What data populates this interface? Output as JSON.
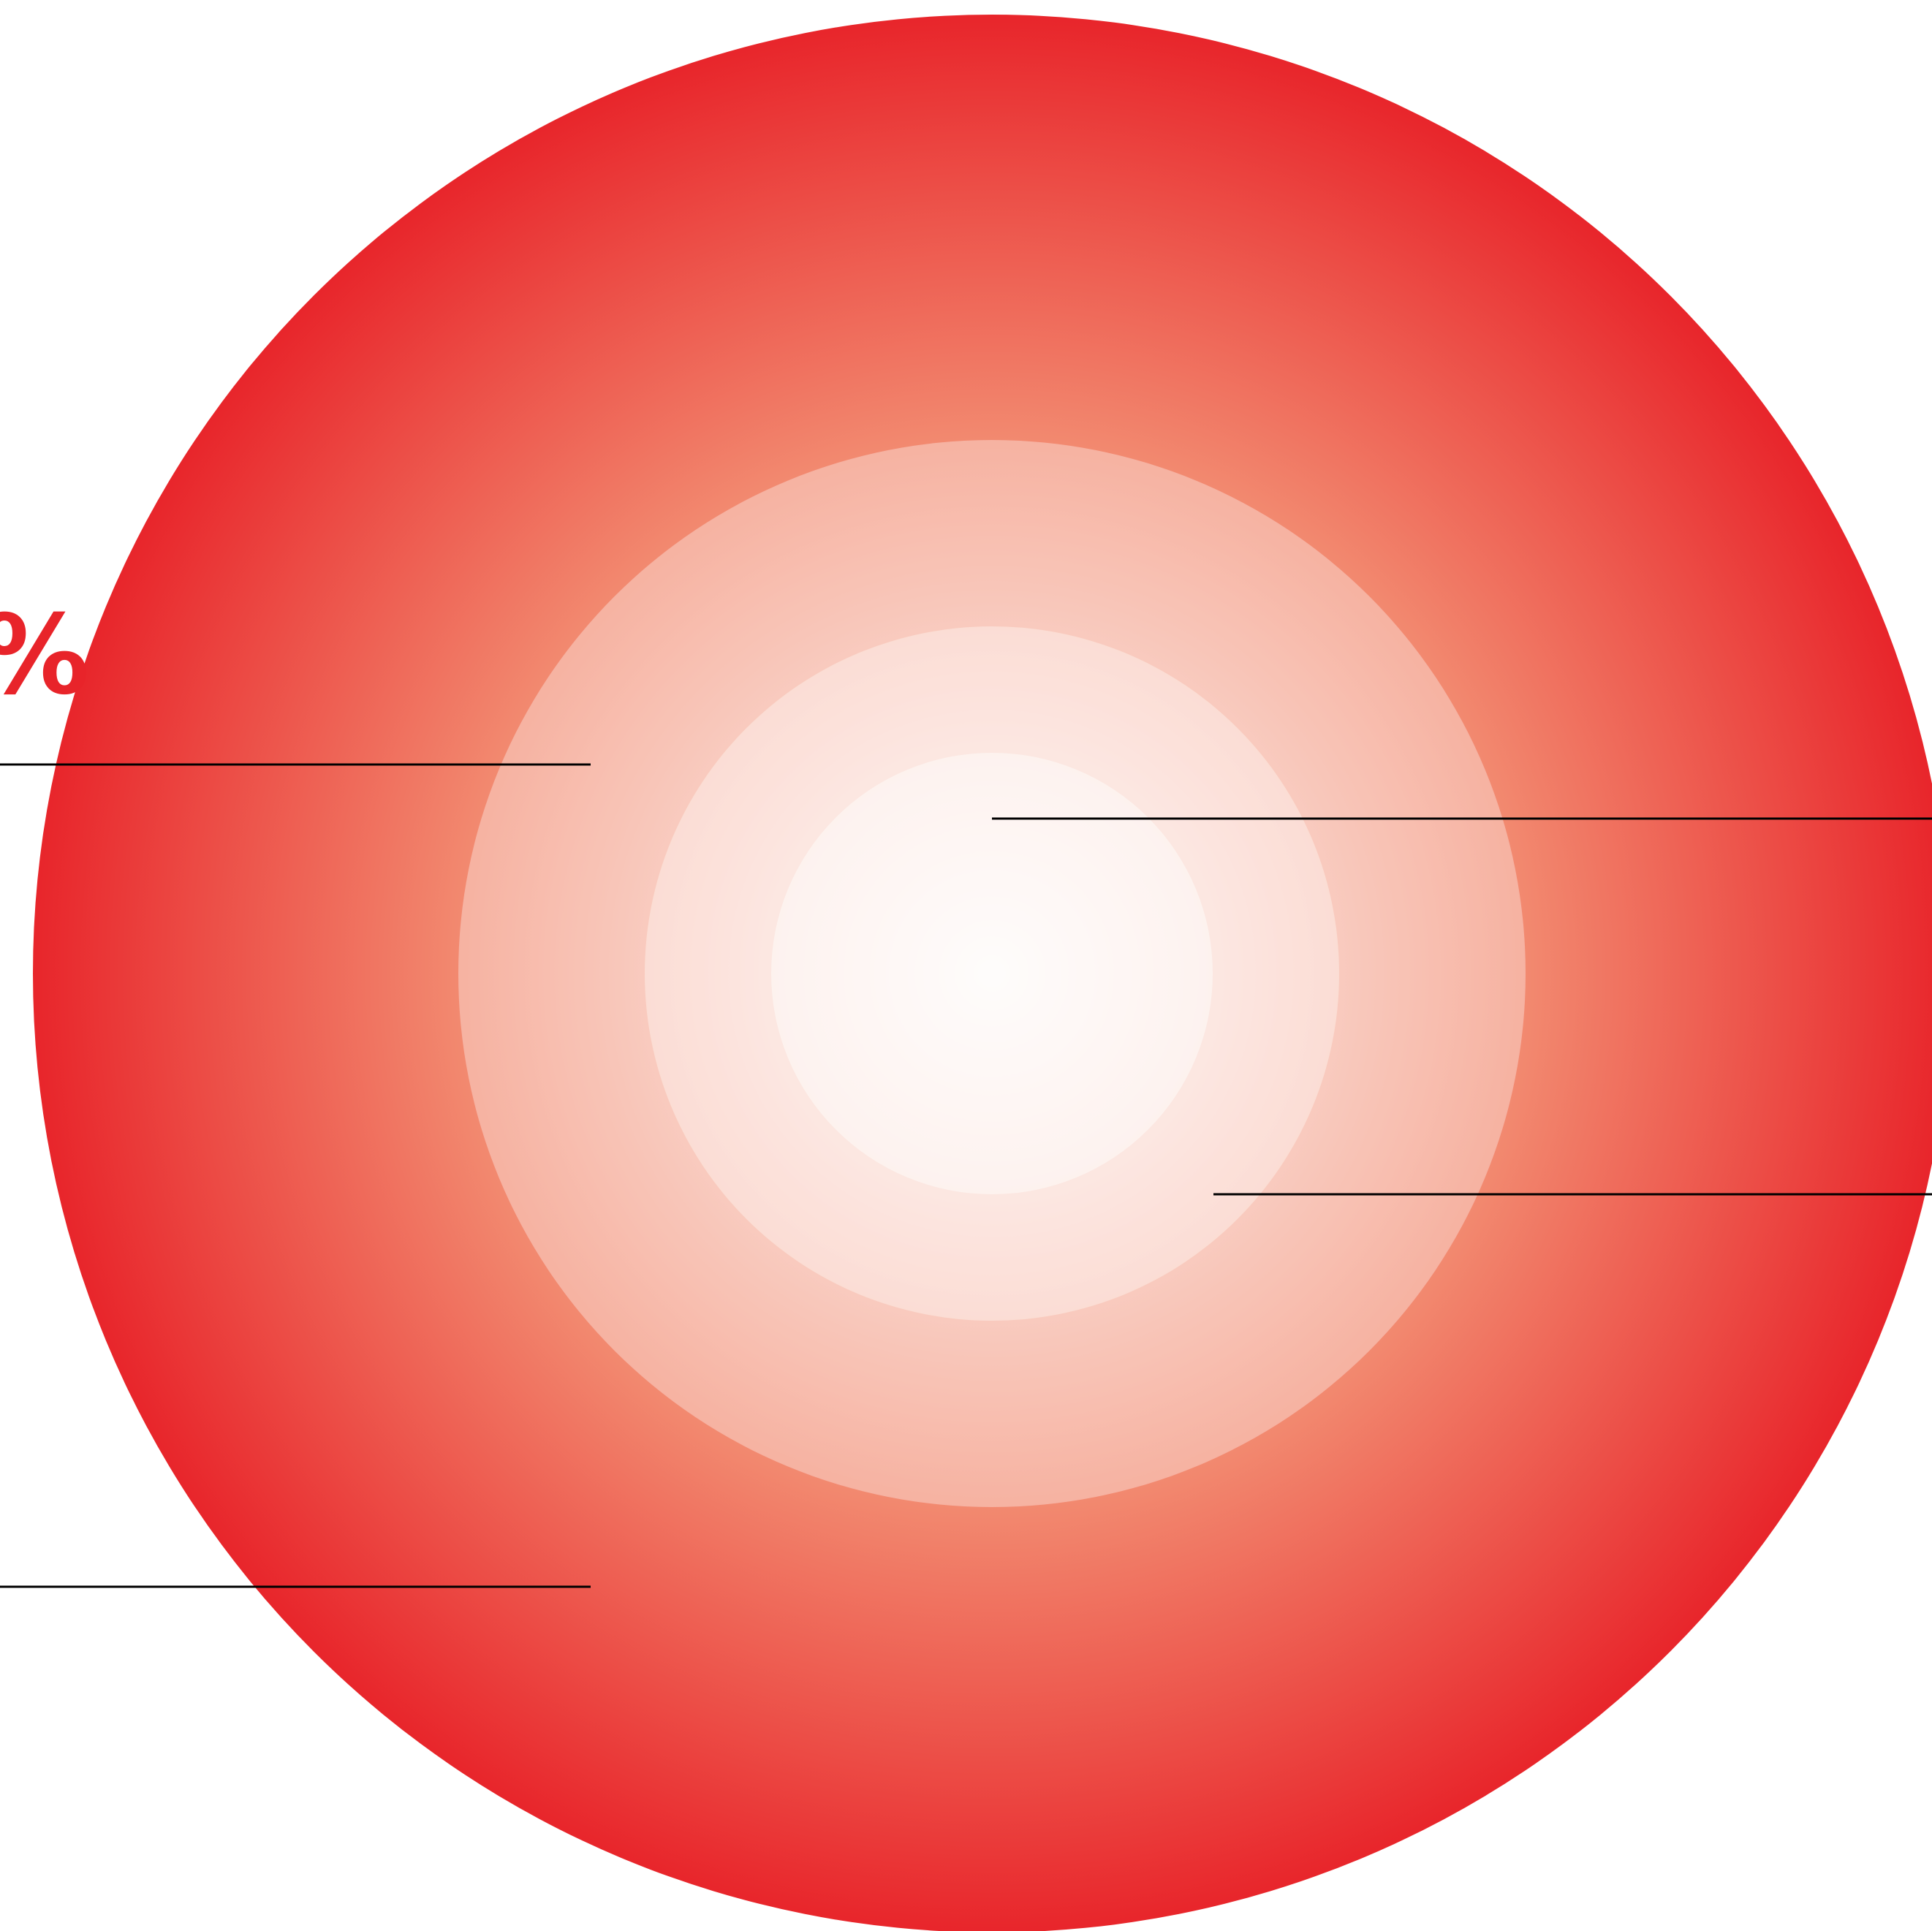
{
  "diagram": {
    "colors": {
      "outer_edge": "#E8242A",
      "outer_mid": "#F28A70",
      "inner_fill": "#FFFFFF",
      "leader_line": "#000000",
      "label": "#E8242A"
    },
    "label": "%",
    "rings": [
      {
        "name": "outer-circle"
      },
      {
        "name": "third-circle"
      },
      {
        "name": "second-circle"
      },
      {
        "name": "inner-circle"
      }
    ]
  }
}
